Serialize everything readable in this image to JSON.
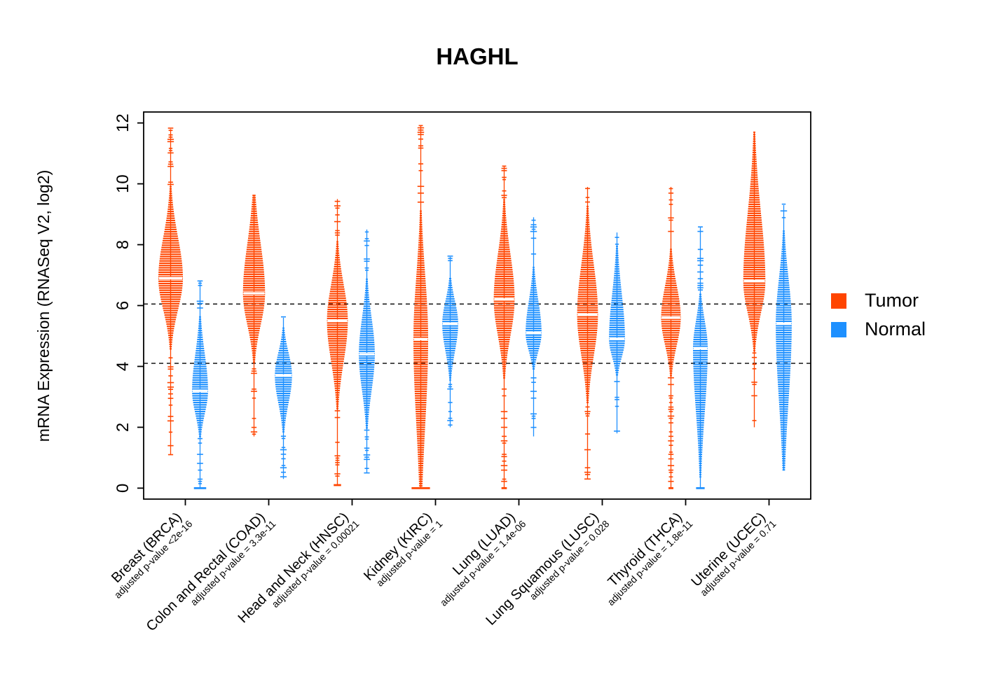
{
  "chart_data": {
    "type": "violin",
    "title": "HAGHL",
    "ylabel": "mRNA Expression (RNASeq V2, log2)",
    "ylim": [
      0,
      12
    ],
    "yticks": [
      0,
      2,
      4,
      6,
      8,
      10,
      12
    ],
    "threshold_lines": [
      6.05,
      4.1
    ],
    "grid": false,
    "legend": {
      "position": "right",
      "entries": [
        {
          "label": "Tumor",
          "color": "#FF4500"
        },
        {
          "label": "Normal",
          "color": "#1E90FF"
        }
      ]
    },
    "categories": [
      {
        "label": "Breast (BRCA)",
        "pvalue_label": "adjusted p-value <2e-16"
      },
      {
        "label": "Colon and Rectal (COAD)",
        "pvalue_label": "adjusted p-value = 3.3e-11"
      },
      {
        "label": "Head and Neck (HNSC)",
        "pvalue_label": "adjusted p-value = 0.00021"
      },
      {
        "label": "Kidney (KIRC)",
        "pvalue_label": "adjusted p-value = 1"
      },
      {
        "label": "Lung (LUAD)",
        "pvalue_label": "adjusted p-value = 1.4e-06"
      },
      {
        "label": "Lung Squamous (LUSC)",
        "pvalue_label": "adjusted p-value = 0.028"
      },
      {
        "label": "Thyroid (THCA)",
        "pvalue_label": "adjusted p-value = 1.8e-11"
      },
      {
        "label": "Uterine (UCEC)",
        "pvalue_label": "adjusted p-value = 0.71"
      }
    ],
    "series": [
      {
        "name": "Tumor",
        "color": "#FF4500",
        "stats": [
          {
            "min": 1.1,
            "max": 11.8,
            "q1": 6.2,
            "median": 6.9,
            "q3": 7.8,
            "width": 1.0
          },
          {
            "min": 1.7,
            "max": 9.6,
            "q1": 5.7,
            "median": 6.4,
            "q3": 7.5,
            "width": 0.9
          },
          {
            "min": 0.1,
            "max": 9.5,
            "q1": 4.6,
            "median": 5.5,
            "q3": 6.3,
            "width": 0.85,
            "extra_ticks": [
              {
                "v": 0.1,
                "w": 0.3
              }
            ]
          },
          {
            "min": 0.0,
            "max": 11.9,
            "q1": 3.0,
            "median": 4.9,
            "q3": 6.3,
            "width": 0.6,
            "extra_ticks": [
              {
                "v": 0,
                "w": 0.75
              }
            ]
          },
          {
            "min": 0.0,
            "max": 10.6,
            "q1": 5.4,
            "median": 6.2,
            "q3": 7.2,
            "width": 0.85,
            "extra_ticks": [
              {
                "v": 0,
                "w": 0.22
              }
            ]
          },
          {
            "min": 0.3,
            "max": 9.9,
            "q1": 4.8,
            "median": 5.7,
            "q3": 6.8,
            "width": 0.85
          },
          {
            "min": 0.0,
            "max": 9.9,
            "q1": 5.0,
            "median": 5.6,
            "q3": 6.3,
            "width": 0.8,
            "extra_ticks": [
              {
                "v": 0,
                "w": 0.2
              }
            ]
          },
          {
            "min": 2.0,
            "max": 11.7,
            "q1": 6.1,
            "median": 6.8,
            "q3": 8.3,
            "width": 0.9
          }
        ]
      },
      {
        "name": "Normal",
        "color": "#1E90FF",
        "stats": [
          {
            "min": 0.0,
            "max": 6.8,
            "q1": 2.7,
            "median": 3.2,
            "q3": 4.0,
            "width": 0.65,
            "extra_ticks": [
              {
                "v": 0,
                "w": 0.5
              }
            ]
          },
          {
            "min": 0.3,
            "max": 5.6,
            "q1": 3.1,
            "median": 3.7,
            "q3": 4.2,
            "width": 0.7
          },
          {
            "min": 0.5,
            "max": 8.5,
            "q1": 3.6,
            "median": 4.4,
            "q3": 5.2,
            "width": 0.65
          },
          {
            "min": 2.0,
            "max": 7.6,
            "q1": 4.8,
            "median": 5.4,
            "q3": 5.9,
            "width": 0.65
          },
          {
            "min": 1.7,
            "max": 8.9,
            "q1": 4.7,
            "median": 5.1,
            "q3": 5.8,
            "width": 0.65
          },
          {
            "min": 1.8,
            "max": 8.4,
            "q1": 4.5,
            "median": 4.9,
            "q3": 5.9,
            "width": 0.65
          },
          {
            "min": 0.0,
            "max": 8.6,
            "q1": 3.2,
            "median": 4.6,
            "q3": 5.2,
            "width": 0.6,
            "extra_ticks": [
              {
                "v": 0,
                "w": 0.35
              }
            ]
          },
          {
            "min": 0.6,
            "max": 9.3,
            "q1": 3.7,
            "median": 5.4,
            "q3": 6.4,
            "width": 0.65
          }
        ]
      }
    ]
  }
}
